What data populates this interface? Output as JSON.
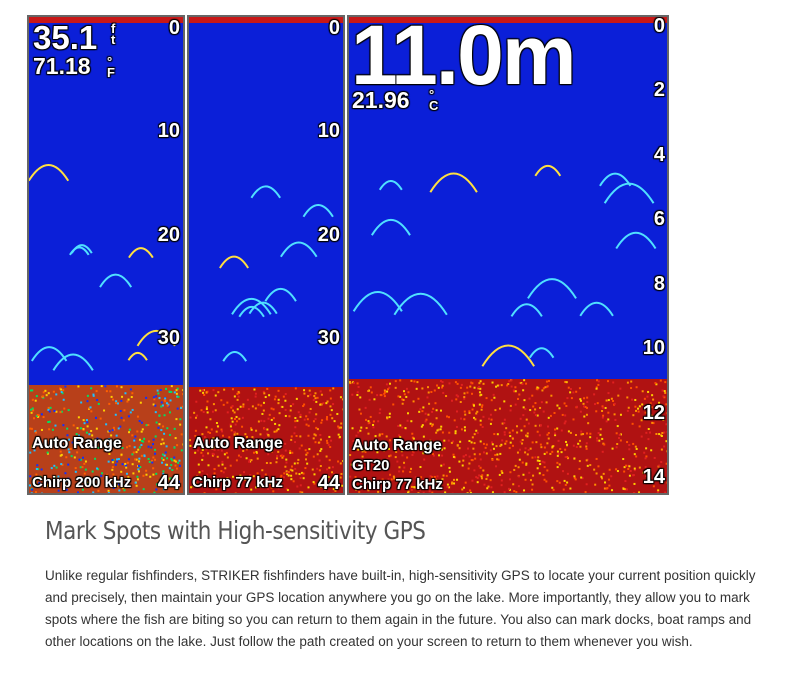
{
  "sonar": {
    "panels": [
      {
        "depth": "35.1",
        "depth_unit": "ft",
        "temp": "71.18",
        "temp_unit": "°F",
        "scale": [
          0,
          10,
          20,
          30,
          44
        ],
        "range_mode": "Auto Range",
        "frequency": "Chirp 200 kHz"
      },
      {
        "scale": [
          0,
          10,
          20,
          30,
          44
        ],
        "range_mode": "Auto Range",
        "frequency": "Chirp 77 kHz"
      },
      {
        "depth": "11.0m",
        "temp": "21.96",
        "temp_unit": "°C",
        "scale": [
          0,
          2,
          4,
          6,
          8,
          10,
          12,
          14
        ],
        "range_mode": "Auto Range",
        "transducer": "GT20",
        "frequency": "Chirp 77 kHz"
      }
    ]
  },
  "article": {
    "heading": "Mark Spots with High-sensitivity GPS",
    "body": "Unlike regular fishfinders, STRIKER fishfinders have built-in, high-sensitivity GPS to locate your current position quickly and precisely, then maintain your GPS location anywhere you go on the lake. More importantly, they allow you to mark spots where the fish are biting so you can return to them again in the future. You also can mark docks, boat ramps and other locations on the lake. Just follow the path created on your screen to return to them whenever you wish."
  }
}
